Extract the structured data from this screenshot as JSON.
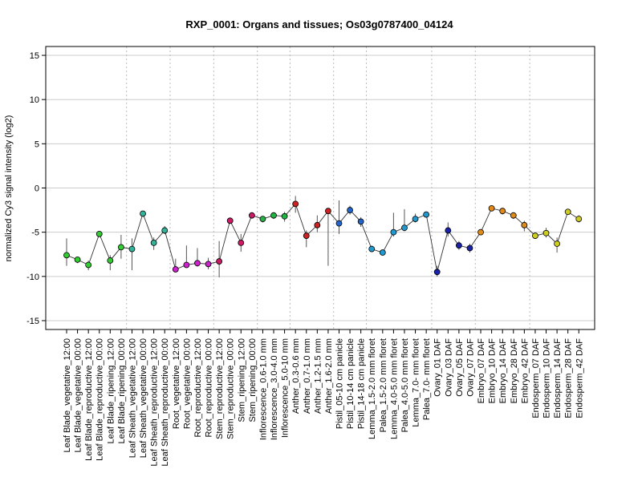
{
  "chart_data": {
    "type": "line",
    "title": "RXP_0001: Organs and tissues; Os03g0787400_04124",
    "ylabel": "normalized Cy3 signal intensity (log2)",
    "xlabel": "",
    "ylim": [
      -16,
      16
    ],
    "yticks": [
      -15,
      -10,
      -5,
      0,
      5,
      10,
      15
    ],
    "grid": true,
    "categories": [
      "Leaf Blade_vegetative_12:00",
      "Leaf Blade_vegetative_00:00",
      "Leaf Blade_reproductive_12:00",
      "Leaf Blade_reproductive_00:00",
      "Leaf Blade_ripening_12:00",
      "Leaf Blade_ripening_00:00",
      "Leaf Sheath_vegetative_12:00",
      "Leaf Sheath_vegetative_00:00",
      "Leaf Sheath_reproductive_12:00",
      "Leaf Sheath_reproductive_00:00",
      "Root_vegetative_12:00",
      "Root_vegetative_00:00",
      "Root_reproductive_12:00",
      "Root_reproductive_00:00",
      "Stem_reproductive_12:00",
      "Stem_reproductive_00:00",
      "Stem_ripening_12:00",
      "Stem_ripening_00:00",
      "Inflorescence_0.6-1.0 mm",
      "Inflorescence_3.0-4.0 mm",
      "Inflorescence_5.0-10 mm",
      "Anther_0.3-0.6 mm",
      "Anther_0.7-1.0 mm",
      "Anther_1.2-1.5 mm",
      "Anther_1.6-2.0 mm",
      "Pistil_05-10 cm panicle",
      "Pistil_10-14 cm panicle",
      "Pistil_14-18 cm panicle",
      "Lemma_1.5-2.0 mm floret",
      "Palea_1.5-2.0 mm floret",
      "Lemma_4.0-5.0 mm floret",
      "Palea_4.0-5.0 mm floret",
      "Lemma_7.0- mm floret",
      "Palea_7.0- mm floret",
      "Ovary_01 DAF",
      "Ovary_03 DAF",
      "Ovary_05 DAF",
      "Ovary_07 DAF",
      "Embryo_07 DAF",
      "Embryo_10 DAF",
      "Embryo_14 DAF",
      "Embryo_28 DAF",
      "Embryo_42 DAF",
      "Endosperm_07 DAF",
      "Endosperm_10 DAF",
      "Endosperm_14 DAF",
      "Endosperm_28 DAF",
      "Endosperm_42 DAF"
    ],
    "values": [
      -7.6,
      -8.1,
      -8.7,
      -5.2,
      -8.2,
      -6.7,
      -6.9,
      -2.9,
      -6.2,
      -4.8,
      -9.2,
      -8.7,
      -8.5,
      -8.6,
      -8.3,
      -3.7,
      -6.2,
      -3.1,
      -3.5,
      -3.1,
      -3.2,
      -1.8,
      -5.4,
      -4.2,
      -2.6,
      -4.0,
      -2.5,
      -3.8,
      -6.9,
      -7.3,
      -5.0,
      -4.5,
      -3.5,
      -3.0,
      -9.5,
      -4.8,
      -6.5,
      -6.8,
      -5.0,
      -2.3,
      -2.6,
      -3.1,
      -4.2,
      -5.4,
      -5.1,
      -6.3,
      -2.7,
      -3.5
    ],
    "err_low": [
      -8.8,
      -8.5,
      -9.3,
      -5.2,
      -9.3,
      -8.0,
      -9.3,
      -3.2,
      -7.0,
      -5.2,
      -9.3,
      -9.0,
      -8.9,
      -9.2,
      -10.1,
      -3.9,
      -7.2,
      -3.4,
      -3.9,
      -3.5,
      -3.8,
      -2.8,
      -6.7,
      -5.0,
      -8.8,
      -5.2,
      -3.0,
      -4.4,
      -7.2,
      -7.5,
      -5.5,
      -4.9,
      -3.9,
      -3.3,
      -10.0,
      -5.5,
      -7.0,
      -7.3,
      -5.3,
      -2.6,
      -3.0,
      -3.5,
      -4.9,
      -5.7,
      -5.6,
      -7.3,
      -3.0,
      -3.9
    ],
    "err_high": [
      -5.7,
      -7.8,
      -8.2,
      -5.2,
      -7.6,
      -5.3,
      -5.7,
      -2.6,
      -5.6,
      -4.3,
      -8.0,
      -6.5,
      -6.8,
      -7.9,
      -6.0,
      -3.5,
      -5.2,
      -2.8,
      -3.2,
      -2.8,
      -2.7,
      -0.9,
      -4.8,
      -3.1,
      -2.4,
      -1.4,
      -2.0,
      -3.3,
      -6.5,
      -7.1,
      -2.8,
      -2.4,
      -2.9,
      -2.7,
      -8.8,
      -3.9,
      -6.0,
      -6.3,
      -4.7,
      -2.1,
      -2.3,
      -2.8,
      -3.7,
      -5.1,
      -4.5,
      -5.6,
      -2.4,
      -3.1
    ],
    "point_colors": [
      "#33cc33",
      "#33cc33",
      "#33cc33",
      "#33cc33",
      "#33cc33",
      "#33cc33",
      "#33b399",
      "#33b399",
      "#33b399",
      "#33b399",
      "#cc22cc",
      "#cc22cc",
      "#cc22cc",
      "#cc22cc",
      "#cc1a66",
      "#cc1a66",
      "#cc1a66",
      "#cc1a66",
      "#22b344",
      "#22b344",
      "#22b344",
      "#cc2222",
      "#cc2222",
      "#cc2222",
      "#cc2222",
      "#2266cc",
      "#2266cc",
      "#2266cc",
      "#2299cc",
      "#2299cc",
      "#2299cc",
      "#2299cc",
      "#2299cc",
      "#2299cc",
      "#1a22aa",
      "#1a22aa",
      "#1a22aa",
      "#1a22aa",
      "#e08a1a",
      "#e08a1a",
      "#e08a1a",
      "#e08a1a",
      "#e08a1a",
      "#cccc22",
      "#cccc22",
      "#cccc22",
      "#cccc22",
      "#cccc22"
    ],
    "line_color": "#333333"
  }
}
